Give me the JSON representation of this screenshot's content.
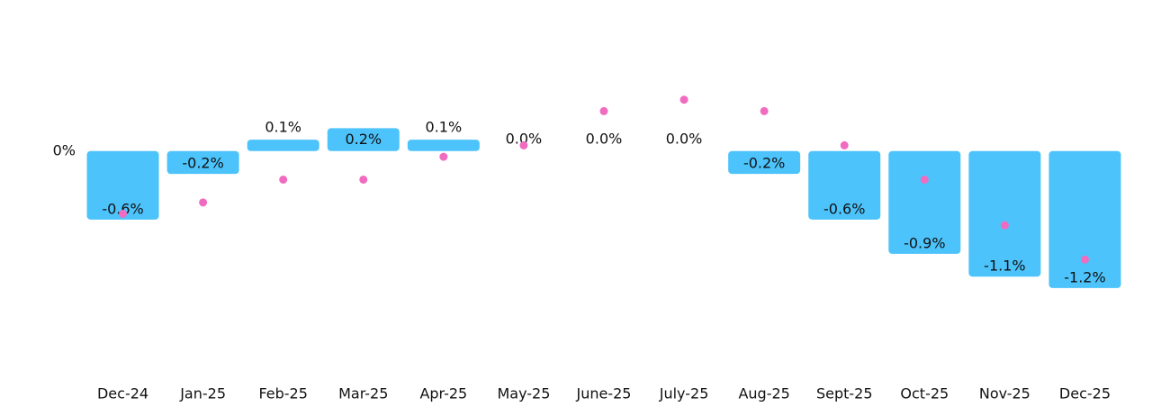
{
  "chart_data": {
    "type": "bar",
    "categories": [
      "Dec-24",
      "Jan-25",
      "Feb-25",
      "Mar-25",
      "Apr-25",
      "May-25",
      "June-25",
      "July-25",
      "Aug-25",
      "Sept-25",
      "Oct-25",
      "Nov-25",
      "Dec-25"
    ],
    "series": [
      {
        "type": "bar",
        "color": "#4cc3fb",
        "values": [
          -0.6,
          -0.2,
          0.1,
          0.2,
          0.1,
          0.0,
          0.0,
          0.0,
          -0.2,
          -0.6,
          -0.9,
          -1.1,
          -1.2
        ],
        "value_labels": [
          "-0.6%",
          "-0.2%",
          "0.1%",
          "0.2%",
          "0.1%",
          "0.0%",
          "0.0%",
          "0.0%",
          "-0.2%",
          "-0.6%",
          "-0.9%",
          "-1.1%",
          "-1.2%"
        ]
      },
      {
        "type": "scatter",
        "color": "#f06cc0",
        "values": [
          -0.55,
          -0.45,
          -0.25,
          -0.25,
          -0.05,
          0.05,
          0.35,
          0.45,
          0.35,
          0.05,
          -0.25,
          -0.65,
          -0.95
        ]
      }
    ],
    "ylim": [
      -1.95,
      0.85
    ],
    "yticks": [
      {
        "value": 0,
        "label": "0%"
      }
    ]
  }
}
